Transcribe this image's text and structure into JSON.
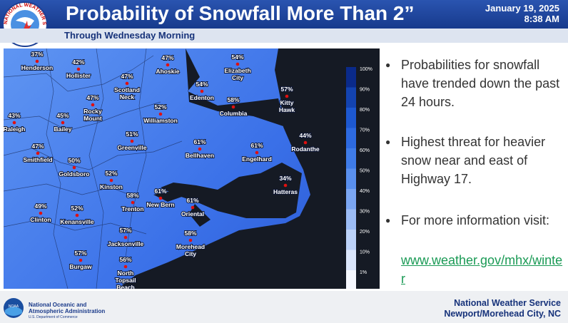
{
  "header": {
    "title": "Probability of Snowfall More Than 2”",
    "subtitle": "Through Wednesday Morning",
    "date": "January 19, 2025",
    "time": "8:38 AM",
    "logo_text": "NATIONAL WEATHER SERVICE"
  },
  "map": {
    "cities": [
      {
        "pct": "37%",
        "name": [
          "Henderson"
        ]
      },
      {
        "pct": "42%",
        "name": [
          "Hollister"
        ]
      },
      {
        "pct": "47%",
        "name": [
          "Ahoskie"
        ]
      },
      {
        "pct": "54%",
        "name": [
          "Elizabeth",
          "City"
        ]
      },
      {
        "pct": "47%",
        "name": [
          "Scotland",
          "Neck"
        ]
      },
      {
        "pct": "47%",
        "name": [
          "Rocky",
          "Mount"
        ]
      },
      {
        "pct": "54%",
        "name": [
          "Edenton"
        ]
      },
      {
        "pct": "58%",
        "name": [
          "Columbia"
        ]
      },
      {
        "pct": "57%",
        "name": [
          "Kitty",
          "Hawk"
        ]
      },
      {
        "pct": "43%",
        "name": [
          "Raleigh"
        ]
      },
      {
        "pct": "45%",
        "name": [
          "Bailey"
        ]
      },
      {
        "pct": "52%",
        "name": [
          "Williamston"
        ]
      },
      {
        "pct": "51%",
        "name": [
          "Greenville"
        ]
      },
      {
        "pct": "44%",
        "name": [
          "Rodanthe"
        ]
      },
      {
        "pct": "61%",
        "name": [
          "Bellhaven"
        ]
      },
      {
        "pct": "61%",
        "name": [
          "Engelhard"
        ]
      },
      {
        "pct": "47%",
        "name": [
          "Smithfield"
        ]
      },
      {
        "pct": "50%",
        "name": [
          "Goldsboro"
        ]
      },
      {
        "pct": "52%",
        "name": [
          "Kinston"
        ]
      },
      {
        "pct": "34%",
        "name": [
          "Hatteras"
        ]
      },
      {
        "pct": "61%",
        "name": [
          "New Bern"
        ]
      },
      {
        "pct": "58%",
        "name": [
          "Trenton"
        ]
      },
      {
        "pct": "61%",
        "name": [
          "Oriental"
        ]
      },
      {
        "pct": "49%",
        "name": [
          "Clinton"
        ]
      },
      {
        "pct": "52%",
        "name": [
          "Kenansville"
        ]
      },
      {
        "pct": "57%",
        "name": [
          "Jacksonville"
        ]
      },
      {
        "pct": "58%",
        "name": [
          "Morehead",
          "City"
        ]
      },
      {
        "pct": "57%",
        "name": [
          "Burgaw"
        ]
      },
      {
        "pct": "56%",
        "name": [
          "North",
          "Topsail",
          "Beach"
        ]
      }
    ],
    "legend": [
      "100%",
      "90%",
      "80%",
      "70%",
      "60%",
      "50%",
      "40%",
      "30%",
      "20%",
      "10%",
      "1%"
    ]
  },
  "bullets": [
    "Probabilities for snowfall have trended down the past 24 hours.",
    "Highest threat for heavier snow near and east of Highway 17.",
    "For more information visit:"
  ],
  "link": "www.weather.gov/mhx/winter",
  "footer": {
    "noaa": [
      "National Oceanic and",
      "Atmospheric Administration",
      "U.S. Department of Commerce"
    ],
    "office": [
      "National Weather Service",
      "Newport/Morehead City, NC"
    ]
  }
}
